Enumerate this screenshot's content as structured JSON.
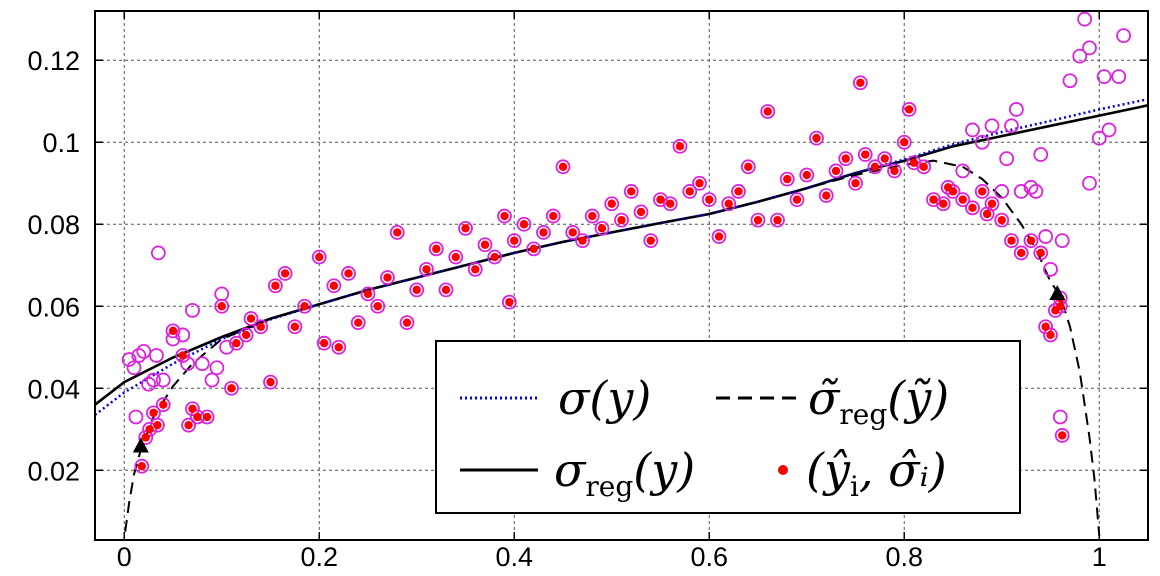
{
  "chart_data": {
    "type": "scatter",
    "xlim": [
      -0.03,
      1.05
    ],
    "ylim": [
      0.003,
      0.132
    ],
    "x_ticks": [
      0,
      0.2,
      0.4,
      0.6,
      0.8,
      1
    ],
    "x_tick_labels": [
      "0",
      "0.2",
      "0.4",
      "0.6",
      "0.8",
      "1"
    ],
    "y_ticks": [
      0.02,
      0.04,
      0.06,
      0.08,
      0.1,
      0.12
    ],
    "y_tick_labels": [
      "0.02",
      "0.04",
      "0.06",
      "0.08",
      "0.1",
      "0.12"
    ],
    "grid": true,
    "legend_position": "bottom-right",
    "legend": [
      {
        "label": "σ(y)",
        "style": "dotted",
        "color": "#0000dd"
      },
      {
        "label": "σ̃",
        "sub": "reg",
        "tail": "(ỹ)",
        "style": "dashed",
        "color": "#000000"
      },
      {
        "label": "σ",
        "sub": "reg",
        "tail": "(y)",
        "style": "solid",
        "color": "#000000"
      },
      {
        "label": "(ŷ",
        "sub": "i",
        "tail": ", σ̂ᵢ)",
        "style": "dot",
        "color": "#ff0000"
      }
    ],
    "colors": {
      "open_circle": "#dd22dd",
      "filled_dot": "#ff0000",
      "sigma": "#0000dd",
      "sigma_reg": "#000000"
    },
    "series": [
      {
        "style": "solid",
        "color": "#000000",
        "x": [
          -0.03,
          0.0,
          0.05,
          0.1,
          0.15,
          0.2,
          0.25,
          0.3,
          0.35,
          0.4,
          0.45,
          0.5,
          0.55,
          0.6,
          0.65,
          0.7,
          0.75,
          0.8,
          0.85,
          0.9,
          0.95,
          1.0,
          1.05
        ],
        "y": [
          0.036,
          0.0415,
          0.0475,
          0.0525,
          0.057,
          0.0605,
          0.064,
          0.067,
          0.07,
          0.073,
          0.0757,
          0.078,
          0.0803,
          0.0825,
          0.0855,
          0.0888,
          0.0925,
          0.0955,
          0.099,
          0.1015,
          0.104,
          0.1065,
          0.109
        ]
      },
      {
        "style": "dotted",
        "color": "#0000dd",
        "x": [
          -0.03,
          0.0,
          0.05,
          0.1,
          0.15,
          0.2,
          0.25,
          0.3,
          0.35,
          0.4,
          0.45,
          0.5,
          0.55,
          0.6,
          0.65,
          0.7,
          0.75,
          0.8,
          0.85,
          0.9,
          0.95,
          1.0,
          1.05
        ],
        "y": [
          0.0335,
          0.039,
          0.046,
          0.052,
          0.0568,
          0.0605,
          0.064,
          0.067,
          0.07,
          0.073,
          0.0757,
          0.078,
          0.0803,
          0.0825,
          0.0855,
          0.0888,
          0.0925,
          0.0958,
          0.0995,
          0.1025,
          0.1052,
          0.108,
          0.1105
        ]
      },
      {
        "style": "dashed",
        "color": "#000000",
        "x": [
          0.001,
          0.005,
          0.01,
          0.017,
          0.03,
          0.05,
          0.07,
          0.1,
          0.15,
          0.2,
          0.25,
          0.3,
          0.35,
          0.4,
          0.45,
          0.5,
          0.55,
          0.6,
          0.65,
          0.7,
          0.75,
          0.8,
          0.83,
          0.86,
          0.88,
          0.9,
          0.92,
          0.935,
          0.95,
          0.96,
          0.97,
          0.98,
          0.99,
          0.995,
          1.0
        ],
        "y": [
          0.005,
          0.012,
          0.019,
          0.025,
          0.033,
          0.0405,
          0.046,
          0.052,
          0.057,
          0.0605,
          0.064,
          0.067,
          0.07,
          0.073,
          0.0757,
          0.078,
          0.0803,
          0.0825,
          0.0855,
          0.0888,
          0.092,
          0.0945,
          0.0955,
          0.094,
          0.091,
          0.0865,
          0.08,
          0.074,
          0.066,
          0.0625,
          0.055,
          0.044,
          0.028,
          0.018,
          0.004
        ]
      }
    ],
    "markers": [
      {
        "x": 0.017,
        "y": 0.0258
      },
      {
        "x": 0.957,
        "y": 0.063
      }
    ],
    "filled_points": [
      [
        0.018,
        0.021
      ],
      [
        0.022,
        0.028
      ],
      [
        0.026,
        0.03
      ],
      [
        0.03,
        0.034
      ],
      [
        0.034,
        0.031
      ],
      [
        0.04,
        0.036
      ],
      [
        0.05,
        0.054
      ],
      [
        0.06,
        0.048
      ],
      [
        0.066,
        0.031
      ],
      [
        0.07,
        0.035
      ],
      [
        0.075,
        0.033
      ],
      [
        0.085,
        0.033
      ],
      [
        0.1,
        0.06
      ],
      [
        0.11,
        0.04
      ],
      [
        0.115,
        0.051
      ],
      [
        0.125,
        0.053
      ],
      [
        0.13,
        0.057
      ],
      [
        0.14,
        0.055
      ],
      [
        0.15,
        0.0415
      ],
      [
        0.155,
        0.065
      ],
      [
        0.165,
        0.068
      ],
      [
        0.175,
        0.055
      ],
      [
        0.185,
        0.06
      ],
      [
        0.2,
        0.072
      ],
      [
        0.205,
        0.051
      ],
      [
        0.215,
        0.065
      ],
      [
        0.22,
        0.05
      ],
      [
        0.23,
        0.068
      ],
      [
        0.24,
        0.056
      ],
      [
        0.25,
        0.063
      ],
      [
        0.26,
        0.06
      ],
      [
        0.27,
        0.067
      ],
      [
        0.28,
        0.078
      ],
      [
        0.29,
        0.056
      ],
      [
        0.3,
        0.064
      ],
      [
        0.31,
        0.069
      ],
      [
        0.32,
        0.074
      ],
      [
        0.33,
        0.064
      ],
      [
        0.34,
        0.072
      ],
      [
        0.35,
        0.079
      ],
      [
        0.36,
        0.069
      ],
      [
        0.37,
        0.075
      ],
      [
        0.38,
        0.072
      ],
      [
        0.39,
        0.082
      ],
      [
        0.395,
        0.061
      ],
      [
        0.4,
        0.076
      ],
      [
        0.41,
        0.08
      ],
      [
        0.42,
        0.074
      ],
      [
        0.43,
        0.078
      ],
      [
        0.44,
        0.082
      ],
      [
        0.45,
        0.094
      ],
      [
        0.46,
        0.078
      ],
      [
        0.47,
        0.076
      ],
      [
        0.48,
        0.082
      ],
      [
        0.49,
        0.079
      ],
      [
        0.5,
        0.085
      ],
      [
        0.51,
        0.081
      ],
      [
        0.52,
        0.088
      ],
      [
        0.53,
        0.083
      ],
      [
        0.54,
        0.076
      ],
      [
        0.55,
        0.086
      ],
      [
        0.56,
        0.085
      ],
      [
        0.57,
        0.099
      ],
      [
        0.58,
        0.088
      ],
      [
        0.59,
        0.09
      ],
      [
        0.6,
        0.086
      ],
      [
        0.61,
        0.077
      ],
      [
        0.62,
        0.085
      ],
      [
        0.63,
        0.088
      ],
      [
        0.64,
        0.094
      ],
      [
        0.65,
        0.081
      ],
      [
        0.66,
        0.1075
      ],
      [
        0.67,
        0.081
      ],
      [
        0.68,
        0.091
      ],
      [
        0.69,
        0.086
      ],
      [
        0.7,
        0.092
      ],
      [
        0.71,
        0.101
      ],
      [
        0.72,
        0.087
      ],
      [
        0.73,
        0.093
      ],
      [
        0.74,
        0.096
      ],
      [
        0.75,
        0.09
      ],
      [
        0.755,
        0.1145
      ],
      [
        0.76,
        0.097
      ],
      [
        0.77,
        0.094
      ],
      [
        0.78,
        0.096
      ],
      [
        0.79,
        0.093
      ],
      [
        0.8,
        0.1
      ],
      [
        0.805,
        0.108
      ],
      [
        0.81,
        0.095
      ],
      [
        0.82,
        0.094
      ],
      [
        0.83,
        0.086
      ],
      [
        0.84,
        0.085
      ],
      [
        0.845,
        0.089
      ],
      [
        0.85,
        0.088
      ],
      [
        0.86,
        0.086
      ],
      [
        0.87,
        0.084
      ],
      [
        0.88,
        0.088
      ],
      [
        0.885,
        0.0825
      ],
      [
        0.89,
        0.085
      ],
      [
        0.9,
        0.081
      ],
      [
        0.91,
        0.076
      ],
      [
        0.92,
        0.073
      ],
      [
        0.93,
        0.076
      ],
      [
        0.94,
        0.073
      ],
      [
        0.945,
        0.055
      ],
      [
        0.95,
        0.053
      ],
      [
        0.955,
        0.059
      ],
      [
        0.96,
        0.06
      ],
      [
        0.96,
        0.062
      ],
      [
        0.962,
        0.0285
      ]
    ],
    "open_points": [
      [
        0.005,
        0.047
      ],
      [
        0.01,
        0.045
      ],
      [
        0.012,
        0.033
      ],
      [
        0.015,
        0.048
      ],
      [
        0.02,
        0.049
      ],
      [
        0.025,
        0.041
      ],
      [
        0.03,
        0.042
      ],
      [
        0.033,
        0.048
      ],
      [
        0.035,
        0.073
      ],
      [
        0.04,
        0.042
      ],
      [
        0.05,
        0.052
      ],
      [
        0.06,
        0.053
      ],
      [
        0.065,
        0.046
      ],
      [
        0.07,
        0.059
      ],
      [
        0.08,
        0.046
      ],
      [
        0.09,
        0.042
      ],
      [
        0.095,
        0.045
      ],
      [
        0.1,
        0.063
      ],
      [
        0.105,
        0.05
      ],
      [
        0.9,
        0.088
      ],
      [
        0.905,
        0.096
      ],
      [
        0.91,
        0.104
      ],
      [
        0.915,
        0.108
      ],
      [
        0.92,
        0.088
      ],
      [
        0.93,
        0.089
      ],
      [
        0.935,
        0.088
      ],
      [
        0.94,
        0.097
      ],
      [
        0.945,
        0.077
      ],
      [
        0.95,
        0.069
      ],
      [
        0.96,
        0.033
      ],
      [
        0.962,
        0.076
      ],
      [
        0.97,
        0.115
      ],
      [
        0.98,
        0.121
      ],
      [
        0.985,
        0.13
      ],
      [
        0.99,
        0.123
      ],
      [
        0.99,
        0.09
      ],
      [
        1.0,
        0.101
      ],
      [
        1.005,
        0.116
      ],
      [
        1.01,
        0.103
      ],
      [
        1.02,
        0.116
      ],
      [
        1.025,
        0.126
      ],
      [
        0.86,
        0.093
      ],
      [
        0.87,
        0.103
      ],
      [
        0.88,
        0.1
      ],
      [
        0.89,
        0.104
      ]
    ]
  }
}
